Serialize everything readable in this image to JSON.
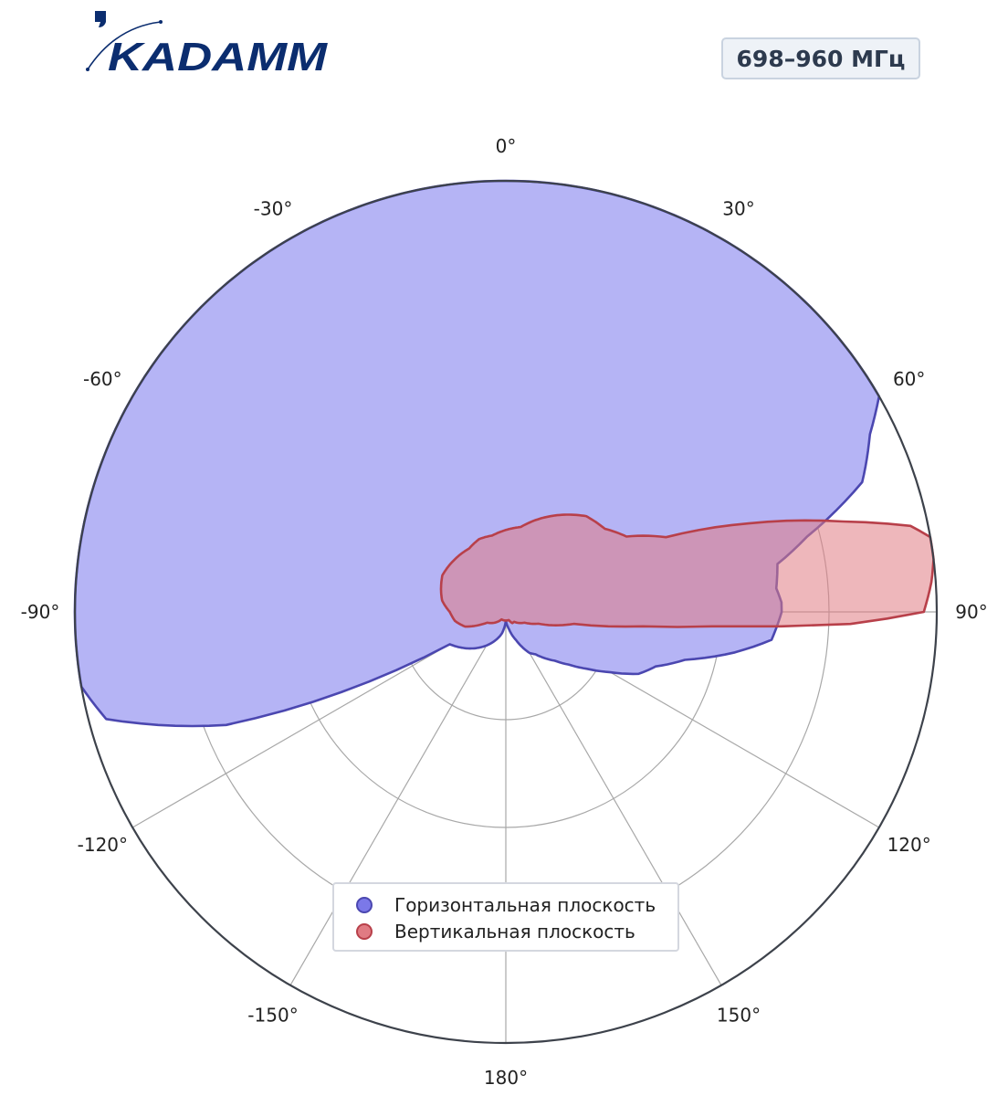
{
  "brand": {
    "logo_text": "KADAMM"
  },
  "band_label": "698–960 МГц",
  "colors": {
    "horizontal_fill": "#b5b4f5",
    "horizontal_line": "#4b47b0",
    "vertical_fill": "#e07b83",
    "vertical_line": "#b8404a",
    "grid": "#a8a8a8",
    "frame": "#3d424b"
  },
  "chart_data": {
    "type": "polar",
    "title": "",
    "angle_zero": "top",
    "angle_direction": "clockwise",
    "angle_ticks": [
      "0°",
      "30°",
      "60°",
      "90°",
      "120°",
      "150°",
      "180°",
      "-150°",
      "-120°",
      "-90°",
      "-60°",
      "-30°"
    ],
    "r_range": [
      0,
      1
    ],
    "radial_gridlines": [
      0.25,
      0.5,
      0.75,
      1.0
    ],
    "legend_position": "lower-center",
    "series": [
      {
        "name": "Горизонтальная плоскость",
        "angles": [
          0,
          10,
          20,
          30,
          40,
          50,
          60,
          64,
          70,
          76,
          80,
          85,
          88,
          90,
          93,
          96,
          100,
          105,
          110,
          115,
          120,
          125,
          130,
          135,
          140,
          145,
          150,
          155,
          160,
          170,
          180,
          190,
          200,
          210,
          220,
          230,
          240,
          248,
          255,
          260,
          265,
          270,
          275,
          280,
          290,
          300,
          310,
          320,
          330,
          340,
          350,
          360
        ],
        "values": [
          1.0,
          1.0,
          1.0,
          1.0,
          1.0,
          1.0,
          1.0,
          0.94,
          0.88,
          0.72,
          0.64,
          0.63,
          0.64,
          0.64,
          0.63,
          0.62,
          0.54,
          0.43,
          0.37,
          0.34,
          0.28,
          0.23,
          0.19,
          0.16,
          0.14,
          0.12,
          0.11,
          0.09,
          0.07,
          0.04,
          0.02,
          0.05,
          0.07,
          0.09,
          0.11,
          0.13,
          0.15,
          0.7,
          0.96,
          1.0,
          1.0,
          1.0,
          1.0,
          1.0,
          1.0,
          1.0,
          1.0,
          1.0,
          1.0,
          1.0,
          1.0,
          1.0
        ]
      },
      {
        "name": "Вертикальная плоскость",
        "angles": [
          0,
          10,
          20,
          30,
          40,
          50,
          58,
          65,
          70,
          75,
          78,
          80,
          83,
          86,
          88,
          90,
          92,
          94,
          96,
          100,
          110,
          120,
          130,
          140,
          150,
          160,
          170,
          180,
          190,
          200,
          210,
          220,
          230,
          240,
          250,
          260,
          270,
          280,
          290,
          300,
          310,
          320,
          330,
          340,
          350,
          360
        ],
        "values": [
          0.19,
          0.2,
          0.23,
          0.26,
          0.29,
          0.3,
          0.33,
          0.41,
          0.6,
          0.81,
          0.96,
          1.0,
          1.0,
          0.99,
          0.98,
          0.97,
          0.8,
          0.48,
          0.32,
          0.16,
          0.08,
          0.05,
          0.04,
          0.03,
          0.03,
          0.02,
          0.02,
          0.02,
          0.02,
          0.02,
          0.02,
          0.03,
          0.04,
          0.05,
          0.1,
          0.12,
          0.13,
          0.15,
          0.16,
          0.17,
          0.17,
          0.17,
          0.17,
          0.18,
          0.18,
          0.19
        ]
      }
    ]
  }
}
